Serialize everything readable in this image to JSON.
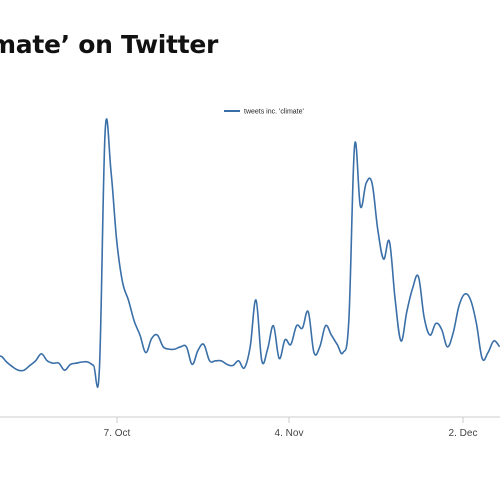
{
  "chart_data": {
    "type": "line",
    "title": "mate’ on Twitter",
    "xlabel": "",
    "ylabel": "",
    "grid": false,
    "legend_position": "top-center",
    "series_color": "#3a6fa8",
    "x_ticks": [
      "7. Oct",
      "4. Nov",
      "2. Dec"
    ],
    "series": [
      {
        "name": "tweets inc. 'climate'",
        "x": [
          0,
          1,
          2,
          3,
          4,
          5,
          6,
          7,
          8,
          9,
          10,
          11,
          12,
          13,
          14,
          15,
          16,
          17,
          18,
          19,
          20,
          21,
          22,
          23,
          24,
          25,
          26,
          27,
          28,
          29,
          30,
          31,
          32,
          33,
          34,
          35,
          36,
          37,
          38,
          39,
          40,
          41,
          42,
          43,
          44,
          45,
          46,
          47,
          48,
          49,
          50,
          51,
          52,
          53,
          54,
          55,
          56,
          57,
          58,
          59,
          60,
          61,
          62,
          63,
          64,
          65,
          66,
          67,
          68,
          69,
          70,
          71,
          72,
          73,
          74,
          75,
          76,
          77,
          78,
          79,
          80,
          81,
          82,
          83,
          84,
          85,
          86,
          87
        ],
        "values": [
          49,
          52,
          47,
          43,
          40,
          40,
          44,
          48,
          54,
          48,
          46,
          46,
          40,
          45,
          46,
          47,
          47,
          44,
          41,
          245,
          210,
          150,
          115,
          100,
          82,
          70,
          55,
          67,
          70,
          60,
          58,
          58,
          60,
          60,
          45,
          57,
          62,
          48,
          48,
          48,
          45,
          44,
          48,
          42,
          60,
          100,
          48,
          58,
          78,
          50,
          66,
          62,
          78,
          76,
          90,
          55,
          60,
          78,
          70,
          62,
          55,
          82,
          232,
          180,
          200,
          200,
          160,
          135,
          150,
          100,
          65,
          90,
          110,
          120,
          85,
          70,
          80,
          75,
          60,
          72,
          95,
          105,
          100,
          80,
          50,
          55,
          65,
          60
        ]
      }
    ]
  }
}
